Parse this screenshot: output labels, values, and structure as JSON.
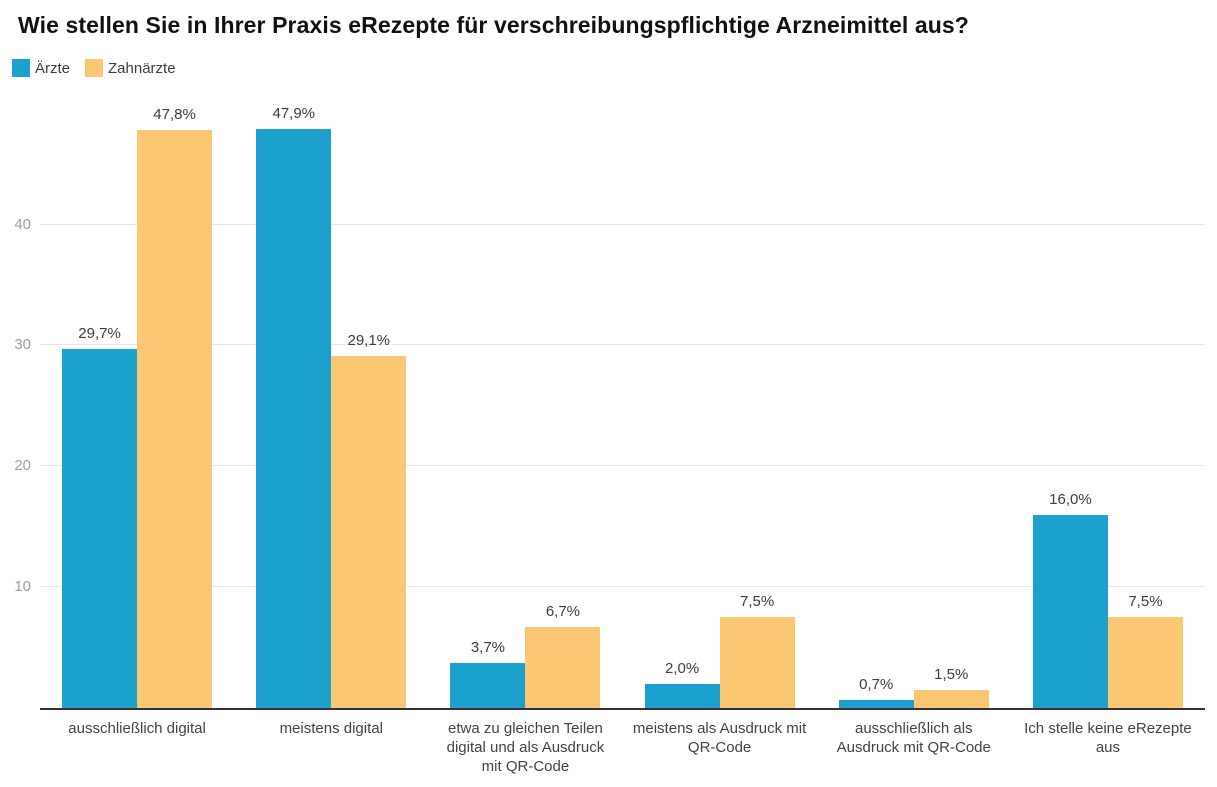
{
  "title": "Wie stellen Sie in Ihrer Praxis eRezepte für verschreibungspflichtige Arzneimittel aus?",
  "chart_data": {
    "type": "bar",
    "title": "Wie stellen Sie in Ihrer Praxis eRezepte für verschreibungspflichtige Arzneimittel aus?",
    "categories": [
      "ausschließlich digital",
      "meistens digital",
      "etwa zu gleichen Teilen digital und als Ausdruck mit QR-Code",
      "meistens als Ausdruck mit QR-Code",
      "ausschließlich als Ausdruck mit QR-Code",
      "Ich stelle keine eRezepte aus"
    ],
    "series": [
      {
        "name": "Ärzte",
        "color": "#1CA0CD",
        "values": [
          29.7,
          47.9,
          3.7,
          2.0,
          0.7,
          16.0
        ],
        "labels": [
          "29,7%",
          "47,9%",
          "3,7%",
          "2,0%",
          "0,7%",
          "16,0%"
        ]
      },
      {
        "name": "Zahnärzte",
        "color": "#FBC772",
        "values": [
          47.8,
          29.1,
          6.7,
          7.5,
          1.5,
          7.5
        ],
        "labels": [
          "47,8%",
          "29,1%",
          "6,7%",
          "7,5%",
          "1,5%",
          "7,5%"
        ]
      }
    ],
    "xlabel": "",
    "ylabel": "",
    "ylim": [
      0,
      50.3
    ],
    "yticks": [
      10,
      20,
      30,
      40
    ],
    "ytick_labels": [
      "10",
      "20",
      "30",
      "40"
    ],
    "grid": true,
    "legend_position": "top-left",
    "value_label_format": "percent-comma-decimal"
  },
  "colors": {
    "background": "#ffffff",
    "title": "#111111",
    "grid": "#e6e6e6",
    "axis_line": "#333333",
    "ytick_label": "#9e9e9e",
    "value_label": "#3c3c3c",
    "category_label": "#424242",
    "legend_label": "#3c3c3c"
  }
}
